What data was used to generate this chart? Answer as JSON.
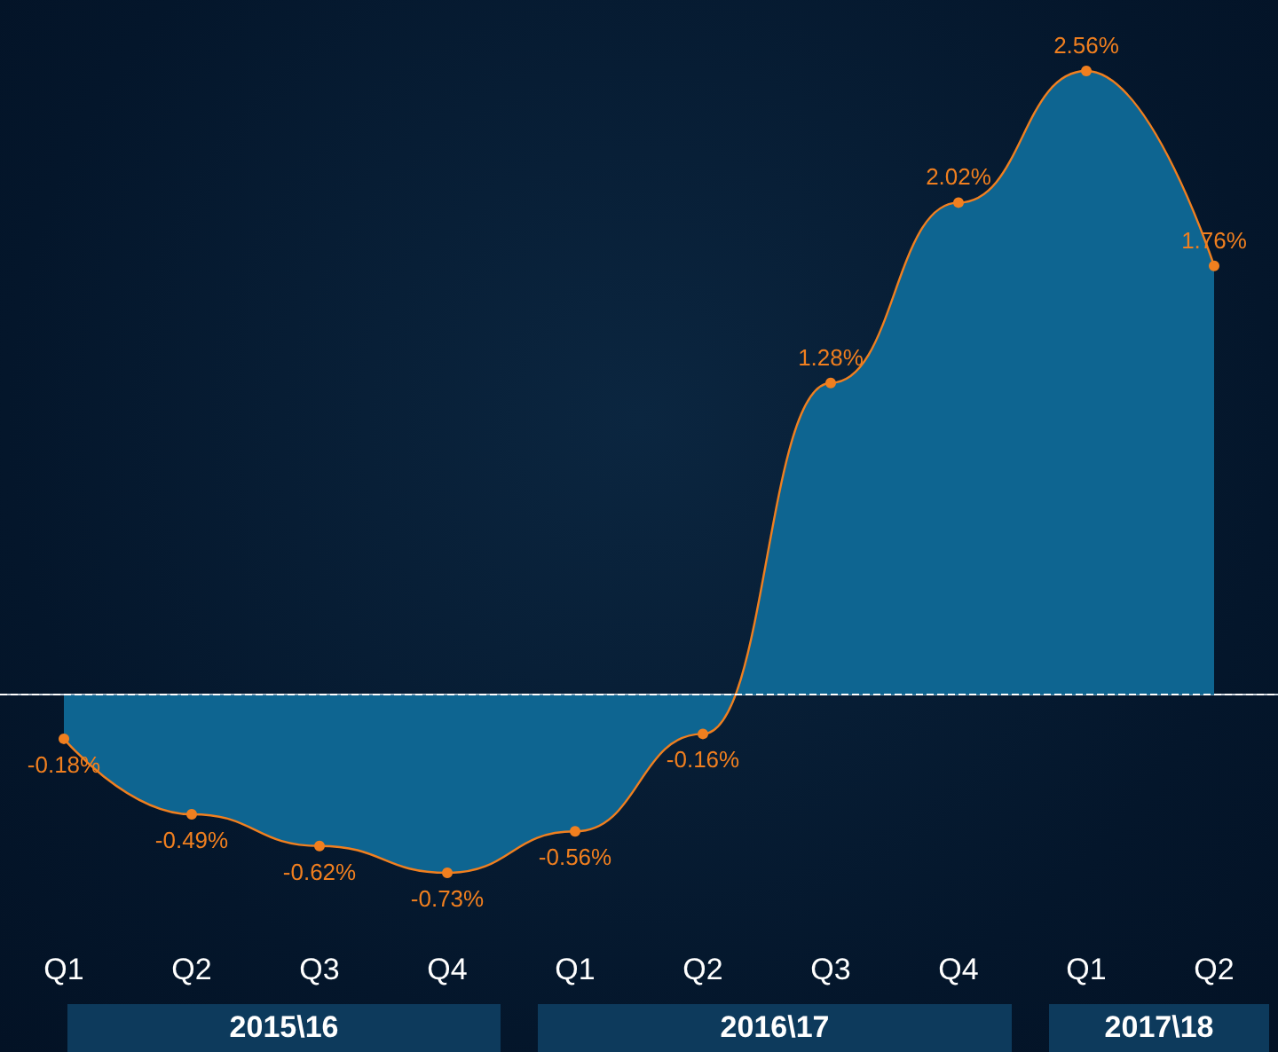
{
  "chart_data": {
    "type": "area",
    "categories": [
      "Q1",
      "Q2",
      "Q3",
      "Q4",
      "Q1",
      "Q2",
      "Q3",
      "Q4",
      "Q1",
      "Q2"
    ],
    "series": [
      {
        "color": "#f07f1f",
        "values": [
          -0.18,
          -0.49,
          -0.62,
          -0.73,
          -0.56,
          -0.16,
          1.28,
          2.02,
          2.56,
          1.76
        ],
        "value_labels": [
          "-0.18%",
          "-0.49%",
          "-0.62%",
          "-0.73%",
          "-0.56%",
          "-0.16%",
          "1.28%",
          "2.02%",
          "2.56%",
          "1.76%"
        ]
      }
    ],
    "annotations": [
      "2015\\16",
      "2016\\17",
      "2017\\18"
    ],
    "ref_lines": [
      {
        "axis": "y",
        "value": 0,
        "color": "#ffffff",
        "line_style": "dashed"
      }
    ],
    "marker": "circle",
    "grid": false
  }
}
